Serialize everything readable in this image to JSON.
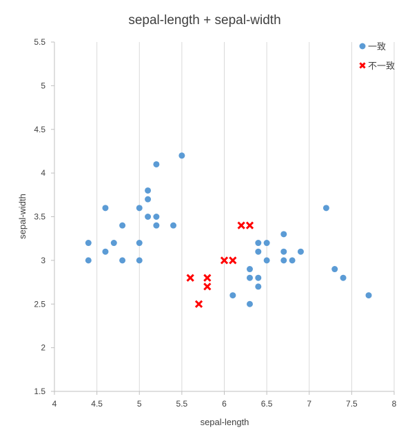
{
  "chart_data": {
    "type": "scatter",
    "title": "sepal-length + sepal-width",
    "xlabel": "sepal-length",
    "ylabel": "sepal-width",
    "xlim": [
      4,
      8
    ],
    "ylim": [
      1.5,
      5.5
    ],
    "xticks": [
      "4",
      "4.5",
      "5",
      "5.5",
      "6",
      "6.5",
      "7",
      "7.5",
      "8"
    ],
    "yticks": [
      "1.5",
      "2",
      "2.5",
      "3",
      "3.5",
      "4",
      "4.5",
      "5",
      "5.5"
    ],
    "grid": "vertical",
    "legend_position": "top-right",
    "series": [
      {
        "name": "一致",
        "marker": "circle",
        "color": "#5B9BD5",
        "points": [
          [
            4.4,
            3.2
          ],
          [
            4.4,
            3.0
          ],
          [
            4.6,
            3.6
          ],
          [
            4.6,
            3.1
          ],
          [
            4.7,
            3.2
          ],
          [
            4.8,
            3.4
          ],
          [
            4.8,
            3.0
          ],
          [
            5.0,
            3.6
          ],
          [
            5.0,
            3.2
          ],
          [
            5.0,
            3.0
          ],
          [
            5.1,
            3.8
          ],
          [
            5.1,
            3.7
          ],
          [
            5.1,
            3.5
          ],
          [
            5.2,
            4.1
          ],
          [
            5.2,
            3.5
          ],
          [
            5.2,
            3.4
          ],
          [
            5.4,
            3.4
          ],
          [
            5.5,
            4.2
          ],
          [
            6.1,
            2.6
          ],
          [
            6.3,
            2.9
          ],
          [
            6.3,
            2.8
          ],
          [
            6.3,
            2.5
          ],
          [
            6.4,
            3.2
          ],
          [
            6.4,
            3.1
          ],
          [
            6.4,
            2.8
          ],
          [
            6.4,
            2.7
          ],
          [
            6.5,
            3.2
          ],
          [
            6.5,
            3.0
          ],
          [
            6.7,
            3.3
          ],
          [
            6.7,
            3.1
          ],
          [
            6.7,
            3.0
          ],
          [
            6.8,
            3.0
          ],
          [
            6.9,
            3.1
          ],
          [
            7.2,
            3.6
          ],
          [
            7.3,
            2.9
          ],
          [
            7.4,
            2.8
          ],
          [
            7.7,
            2.6
          ]
        ]
      },
      {
        "name": "不一致",
        "marker": "x",
        "color": "#FF0000",
        "points": [
          [
            5.6,
            2.8
          ],
          [
            5.7,
            2.5
          ],
          [
            5.8,
            2.8
          ],
          [
            5.8,
            2.7
          ],
          [
            6.0,
            3.0
          ],
          [
            6.1,
            3.0
          ],
          [
            6.2,
            3.4
          ],
          [
            6.3,
            3.4
          ]
        ]
      }
    ]
  }
}
